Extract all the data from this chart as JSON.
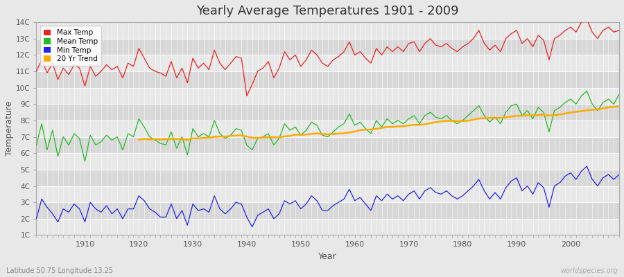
{
  "title": "Yearly Average Temperatures 1901 - 2009",
  "xlabel": "Year",
  "ylabel": "Temperature",
  "subtitle_left": "Latitude 50.75 Longitude 13.25",
  "subtitle_right": "worldspecies.org",
  "legend_entries": [
    "Max Temp",
    "Mean Temp",
    "Min Temp",
    "20 Yr Trend"
  ],
  "colors": {
    "max": "#ee2222",
    "mean": "#22bb22",
    "min": "#2222ee",
    "trend": "#ffaa00"
  },
  "ylim": [
    1,
    14
  ],
  "yticks": [
    1,
    2,
    3,
    4,
    5,
    6,
    7,
    8,
    9,
    10,
    11,
    12,
    13,
    14
  ],
  "ytick_labels": [
    "1C",
    "2C",
    "3C",
    "4C",
    "5C",
    "6C",
    "7C",
    "8C",
    "9C",
    "10C",
    "11C",
    "12C",
    "13C",
    "14C"
  ],
  "fig_bg": "#e8e8e8",
  "plot_bg_light": "#e8e8e8",
  "plot_bg_dark": "#d8d8d8",
  "grid_color": "#ffffff",
  "years": [
    1901,
    1902,
    1903,
    1904,
    1905,
    1906,
    1907,
    1908,
    1909,
    1910,
    1911,
    1912,
    1913,
    1914,
    1915,
    1916,
    1917,
    1918,
    1919,
    1920,
    1921,
    1922,
    1923,
    1924,
    1925,
    1926,
    1927,
    1928,
    1929,
    1930,
    1931,
    1932,
    1933,
    1934,
    1935,
    1936,
    1937,
    1938,
    1939,
    1940,
    1941,
    1942,
    1943,
    1944,
    1945,
    1946,
    1947,
    1948,
    1949,
    1950,
    1951,
    1952,
    1953,
    1954,
    1955,
    1956,
    1957,
    1958,
    1959,
    1960,
    1961,
    1962,
    1963,
    1964,
    1965,
    1966,
    1967,
    1968,
    1969,
    1970,
    1971,
    1972,
    1973,
    1974,
    1975,
    1976,
    1977,
    1978,
    1979,
    1980,
    1981,
    1982,
    1983,
    1984,
    1985,
    1986,
    1987,
    1988,
    1989,
    1990,
    1991,
    1992,
    1993,
    1994,
    1995,
    1996,
    1997,
    1998,
    1999,
    2000,
    2001,
    2002,
    2003,
    2004,
    2005,
    2006,
    2007,
    2008,
    2009
  ],
  "max_temps": [
    11.0,
    11.7,
    10.9,
    11.5,
    10.5,
    11.2,
    10.8,
    11.4,
    11.2,
    10.1,
    11.3,
    10.7,
    11.0,
    11.4,
    11.1,
    11.3,
    10.6,
    11.5,
    11.3,
    12.4,
    11.8,
    11.2,
    11.0,
    10.9,
    10.7,
    11.6,
    10.6,
    11.2,
    10.3,
    11.8,
    11.2,
    11.5,
    11.1,
    12.3,
    11.5,
    11.1,
    11.5,
    11.9,
    11.8,
    9.5,
    10.2,
    11.0,
    11.2,
    11.6,
    10.6,
    11.2,
    12.2,
    11.7,
    12.0,
    11.3,
    11.7,
    12.3,
    12.0,
    11.5,
    11.3,
    11.7,
    11.9,
    12.2,
    12.8,
    12.0,
    12.2,
    11.8,
    11.5,
    12.4,
    12.0,
    12.5,
    12.2,
    12.5,
    12.2,
    12.7,
    12.8,
    12.2,
    12.7,
    13.0,
    12.6,
    12.5,
    12.7,
    12.4,
    12.2,
    12.5,
    12.7,
    13.0,
    13.5,
    12.7,
    12.3,
    12.6,
    12.2,
    13.0,
    13.3,
    13.5,
    12.7,
    13.0,
    12.5,
    13.2,
    12.9,
    11.7,
    13.0,
    13.2,
    13.5,
    13.7,
    13.4,
    14.0,
    14.2,
    13.4,
    13.0,
    13.5,
    13.7,
    13.4,
    13.5
  ],
  "mean_temps": [
    6.5,
    7.8,
    6.2,
    7.4,
    5.8,
    7.0,
    6.5,
    7.2,
    6.9,
    5.5,
    7.1,
    6.5,
    6.7,
    7.1,
    6.8,
    7.0,
    6.2,
    7.2,
    7.0,
    8.1,
    7.6,
    7.0,
    6.8,
    6.6,
    6.5,
    7.3,
    6.3,
    7.0,
    5.9,
    7.5,
    7.0,
    7.2,
    7.0,
    8.0,
    7.2,
    6.9,
    7.1,
    7.5,
    7.4,
    6.5,
    6.2,
    6.9,
    7.0,
    7.2,
    6.5,
    6.9,
    7.8,
    7.4,
    7.6,
    7.1,
    7.4,
    7.9,
    7.7,
    7.1,
    7.0,
    7.3,
    7.6,
    7.8,
    8.4,
    7.7,
    7.9,
    7.5,
    7.2,
    8.0,
    7.6,
    8.1,
    7.8,
    8.0,
    7.8,
    8.1,
    8.3,
    7.8,
    8.3,
    8.5,
    8.2,
    8.1,
    8.3,
    8.0,
    7.8,
    8.0,
    8.3,
    8.6,
    8.9,
    8.3,
    7.9,
    8.2,
    7.8,
    8.5,
    8.9,
    9.0,
    8.3,
    8.6,
    8.1,
    8.8,
    8.5,
    7.3,
    8.6,
    8.8,
    9.1,
    9.3,
    9.0,
    9.5,
    9.8,
    9.0,
    8.6,
    9.1,
    9.3,
    9.0,
    9.6
  ],
  "min_temps": [
    2.0,
    3.2,
    2.7,
    2.3,
    1.8,
    2.6,
    2.4,
    2.9,
    2.6,
    1.8,
    3.0,
    2.6,
    2.4,
    2.8,
    2.3,
    2.6,
    2.0,
    2.6,
    2.6,
    3.4,
    3.1,
    2.6,
    2.4,
    2.1,
    2.1,
    2.9,
    2.0,
    2.5,
    1.6,
    2.9,
    2.5,
    2.6,
    2.4,
    3.4,
    2.6,
    2.3,
    2.6,
    3.0,
    2.9,
    2.1,
    1.5,
    2.2,
    2.4,
    2.6,
    2.0,
    2.3,
    3.1,
    2.9,
    3.1,
    2.6,
    2.9,
    3.4,
    3.1,
    2.5,
    2.5,
    2.8,
    3.0,
    3.2,
    3.8,
    3.1,
    3.3,
    2.9,
    2.5,
    3.4,
    3.1,
    3.5,
    3.2,
    3.4,
    3.1,
    3.5,
    3.7,
    3.2,
    3.7,
    3.9,
    3.6,
    3.5,
    3.7,
    3.4,
    3.2,
    3.4,
    3.7,
    4.0,
    4.4,
    3.7,
    3.2,
    3.6,
    3.2,
    3.9,
    4.3,
    4.5,
    3.7,
    4.0,
    3.5,
    4.2,
    3.9,
    2.7,
    4.0,
    4.2,
    4.6,
    4.8,
    4.4,
    4.9,
    5.2,
    4.4,
    4.0,
    4.5,
    4.7,
    4.4,
    4.7
  ]
}
